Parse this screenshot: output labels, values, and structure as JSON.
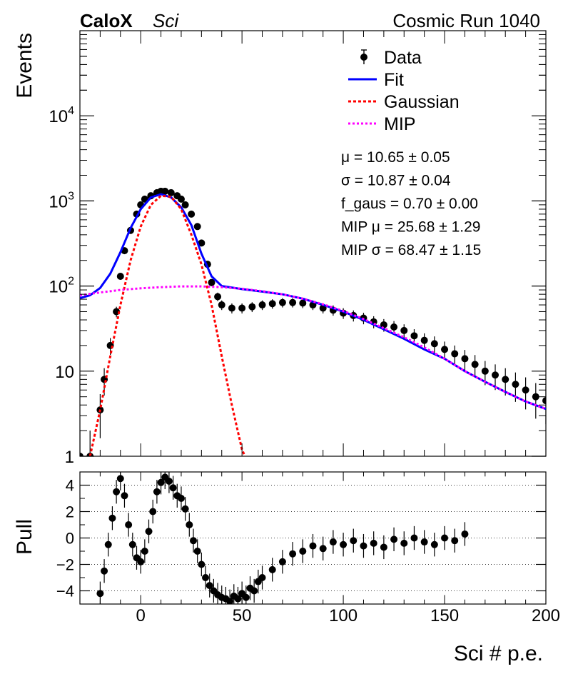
{
  "header": {
    "experiment": "CaloX",
    "experiment_sub": "Sci",
    "run_label": "Cosmic Run 1040"
  },
  "chart_data": [
    {
      "type": "scatter",
      "panel": "main",
      "ylabel": "Events",
      "xlim": [
        -30,
        200
      ],
      "ylim": [
        1,
        100000
      ],
      "yscale": "log",
      "yticks": [
        "1",
        "10",
        "10^2",
        "10^3",
        "10^4"
      ],
      "legend": {
        "placement": "top-right",
        "entries": [
          {
            "label": "Data",
            "color": "#000000"
          },
          {
            "label": "Fit",
            "color": "#0000ff"
          },
          {
            "label": "Gaussian",
            "color": "#ff0000"
          },
          {
            "label": "MIP",
            "color": "#ff00ff"
          }
        ]
      },
      "annotations": [
        "μ = 10.65 ± 0.05",
        "σ = 10.87 ± 0.04",
        "f_gaus = 0.70 ± 0.00",
        "MIP μ = 25.68 ± 1.29",
        "MIP σ = 68.47 ± 1.15"
      ],
      "series": [
        {
          "name": "Data",
          "kind": "points_with_errors",
          "x": [
            -30,
            -25,
            -20,
            -18,
            -15,
            -12,
            -10,
            -8,
            -5,
            -2,
            0,
            2,
            5,
            8,
            10,
            12,
            15,
            18,
            20,
            22,
            25,
            28,
            30,
            33,
            35,
            38,
            40,
            45,
            50,
            55,
            60,
            65,
            70,
            75,
            80,
            85,
            90,
            95,
            100,
            105,
            110,
            115,
            120,
            125,
            130,
            135,
            140,
            145,
            150,
            155,
            160,
            165,
            170,
            175,
            180,
            185,
            190,
            195,
            200
          ],
          "y": [
            1,
            1,
            3.5,
            8,
            20,
            50,
            130,
            260,
            450,
            700,
            900,
            1050,
            1150,
            1250,
            1300,
            1300,
            1250,
            1150,
            1050,
            900,
            700,
            500,
            320,
            180,
            110,
            75,
            60,
            55,
            55,
            57,
            60,
            62,
            64,
            64,
            63,
            60,
            55,
            52,
            48,
            45,
            42,
            38,
            35,
            33,
            30,
            26,
            23,
            21,
            18,
            16,
            14,
            12,
            10,
            9,
            8,
            7,
            6,
            5,
            4.5
          ]
        },
        {
          "name": "Fit",
          "kind": "line",
          "x": [
            -30,
            -25,
            -20,
            -15,
            -10,
            -5,
            0,
            5,
            10,
            15,
            20,
            25,
            30,
            35,
            40,
            50,
            60,
            70,
            80,
            90,
            100,
            110,
            120,
            130,
            140,
            150,
            160,
            170,
            180,
            190,
            200
          ],
          "y": [
            72,
            78,
            95,
            140,
            250,
            480,
            800,
            1100,
            1200,
            1100,
            840,
            520,
            240,
            130,
            100,
            92,
            86,
            80,
            71,
            60,
            50,
            40,
            31,
            24,
            18,
            14,
            10,
            7.5,
            5.7,
            4.4,
            3.6
          ]
        },
        {
          "name": "Gaussian",
          "kind": "line",
          "x": [
            -25,
            -20,
            -15,
            -10,
            -5,
            0,
            5,
            10,
            15,
            20,
            25,
            30,
            35,
            40,
            45,
            50,
            51.5
          ],
          "y": [
            1,
            3.5,
            15,
            60,
            200,
            500,
            900,
            1150,
            1120,
            800,
            400,
            180,
            60,
            15,
            4,
            1.2,
            1
          ]
        },
        {
          "name": "MIP",
          "kind": "line",
          "x": [
            -30,
            -20,
            -10,
            0,
            10,
            20,
            30,
            40,
            50,
            60,
            70,
            80,
            90,
            100,
            110,
            120,
            130,
            140,
            150,
            160,
            170,
            180,
            190,
            200
          ],
          "y": [
            78,
            84,
            90,
            94,
            97,
            99,
            99,
            97,
            93,
            87,
            80,
            71,
            61,
            51,
            41,
            32,
            25,
            19,
            14,
            10,
            7.5,
            5.7,
            4.4,
            3.6
          ]
        }
      ]
    },
    {
      "type": "scatter",
      "panel": "pull",
      "xlabel": "Sci # p.e.",
      "ylabel": "Pull",
      "xlim": [
        -30,
        200
      ],
      "ylim": [
        -5,
        5
      ],
      "xticks": [
        0,
        50,
        100,
        150,
        200
      ],
      "yticks": [
        -4,
        -2,
        0,
        2,
        4
      ],
      "grid": "horizontal dotted",
      "series": [
        {
          "name": "Pull",
          "kind": "points_with_errors",
          "x": [
            -20,
            -18,
            -16,
            -14,
            -12,
            -10,
            -8,
            -6,
            -4,
            -2,
            0,
            2,
            4,
            6,
            8,
            10,
            12,
            14,
            16,
            18,
            20,
            22,
            24,
            26,
            28,
            30,
            32,
            34,
            36,
            38,
            40,
            42,
            44,
            46,
            48,
            50,
            52,
            54,
            56,
            58,
            60,
            65,
            70,
            75,
            80,
            85,
            90,
            95,
            100,
            105,
            110,
            115,
            120,
            125,
            130,
            135,
            140,
            145,
            150,
            155,
            160
          ],
          "y": [
            -4.2,
            -2.5,
            -0.5,
            1.5,
            3.5,
            4.5,
            3.2,
            1.0,
            -0.5,
            -1.5,
            -1.8,
            -1.0,
            0.5,
            2.0,
            3.5,
            4.2,
            4.6,
            4.3,
            3.8,
            3.2,
            3.0,
            2.2,
            1.0,
            -0.2,
            -1.0,
            -2.0,
            -3.0,
            -3.6,
            -4.0,
            -4.3,
            -4.5,
            -4.6,
            -4.8,
            -4.4,
            -4.6,
            -4.2,
            -4.5,
            -3.8,
            -4.0,
            -3.3,
            -3.0,
            -2.4,
            -1.8,
            -1.2,
            -1.0,
            -0.6,
            -0.8,
            -0.3,
            -0.5,
            -0.2,
            -0.6,
            -0.4,
            -0.7,
            -0.1,
            -0.4,
            0.0,
            -0.3,
            -0.5,
            0.0,
            -0.2,
            0.3
          ]
        }
      ]
    }
  ]
}
